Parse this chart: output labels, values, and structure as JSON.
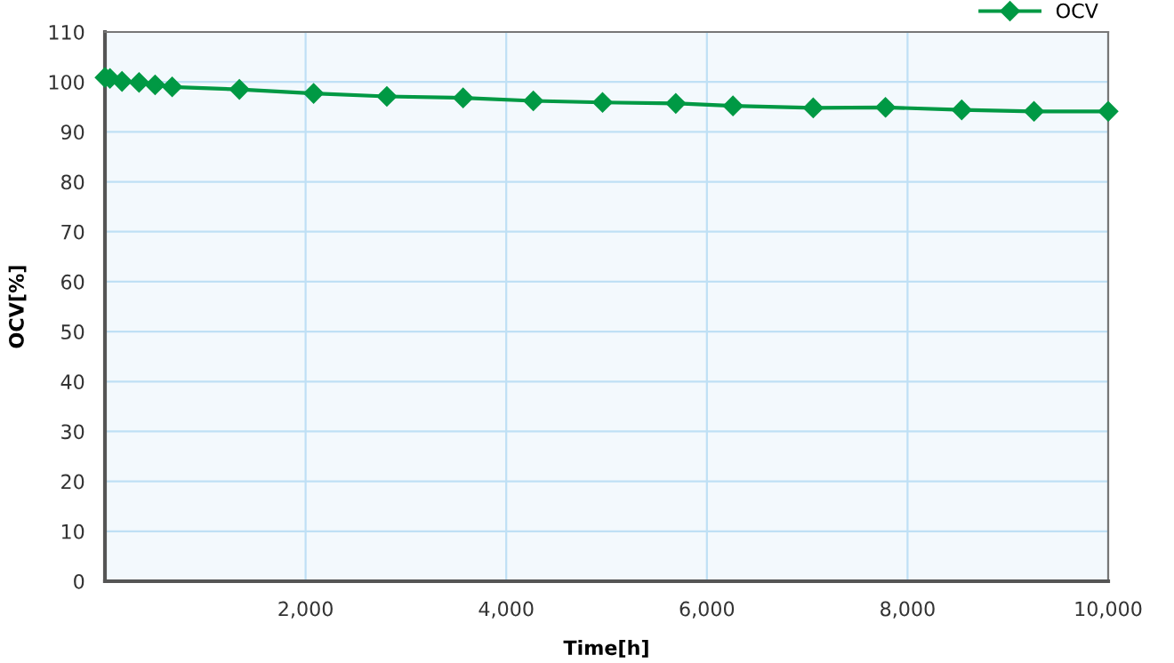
{
  "chart_data": {
    "type": "line",
    "xlabel": "Time[h]",
    "ylabel": "OCV[%]",
    "x": [
      0,
      50,
      170,
      340,
      500,
      670,
      1340,
      2080,
      2810,
      3570,
      4270,
      4960,
      5690,
      6260,
      7060,
      7780,
      8540,
      9260,
      10000
    ],
    "series": [
      {
        "name": "OCV",
        "color": "#009944",
        "values": [
          100.9,
          100.7,
          100.1,
          99.9,
          99.4,
          99.0,
          98.5,
          97.7,
          97.1,
          96.8,
          96.2,
          95.9,
          95.7,
          95.2,
          94.8,
          94.9,
          94.4,
          94.1,
          94.1
        ]
      }
    ],
    "xlim": [
      0,
      10000
    ],
    "ylim": [
      0,
      110
    ],
    "xticks": [
      {
        "value": 2000,
        "label": "2,000"
      },
      {
        "value": 4000,
        "label": "4,000"
      },
      {
        "value": 6000,
        "label": "6,000"
      },
      {
        "value": 8000,
        "label": "8,000"
      },
      {
        "value": 10000,
        "label": "10,000"
      }
    ],
    "yticks": [
      0,
      10,
      20,
      30,
      40,
      50,
      60,
      70,
      80,
      90,
      100,
      110
    ],
    "grid": true,
    "legend": "top right",
    "marker": "diamond",
    "line_style": "solid"
  }
}
